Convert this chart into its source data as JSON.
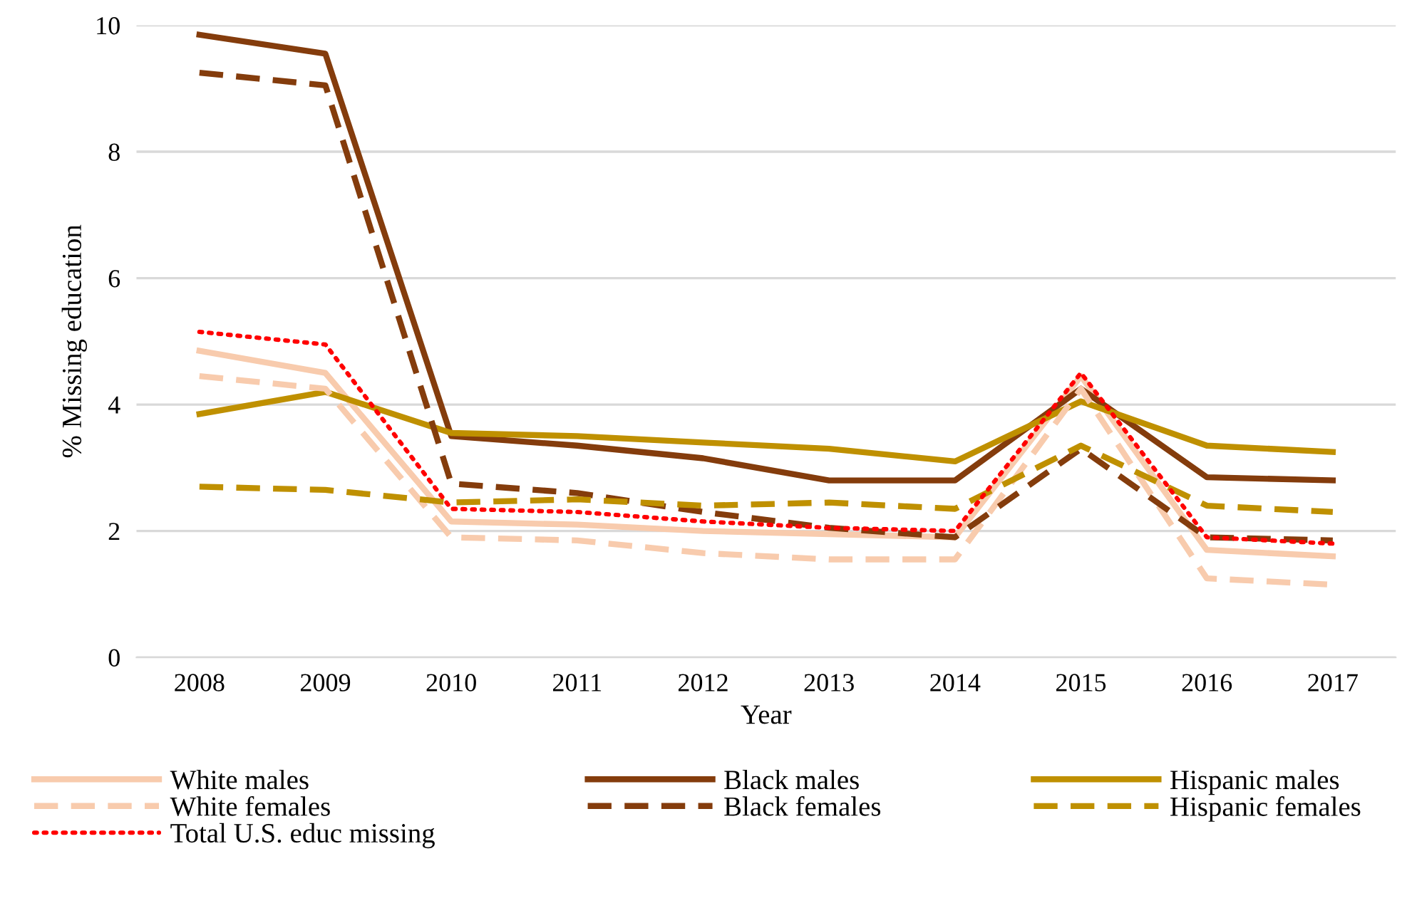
{
  "chart_data": {
    "type": "line",
    "xlabel": "Year",
    "ylabel": "% Missing education",
    "categories": [
      "2008",
      "2009",
      "2010",
      "2011",
      "2012",
      "2013",
      "2014",
      "2015",
      "2016",
      "2017"
    ],
    "ylim": [
      0,
      10
    ],
    "yticks": [
      0,
      2,
      4,
      6,
      8,
      10
    ],
    "grid": "y",
    "legend": "bottom",
    "series": [
      {
        "name": "White males",
        "color": "#f8cbad",
        "line_style": "solid",
        "values": [
          4.85,
          4.5,
          2.15,
          2.1,
          2.0,
          1.95,
          1.9,
          4.45,
          1.7,
          1.6
        ]
      },
      {
        "name": "Black males",
        "color": "#843c0c",
        "line_style": "solid",
        "values": [
          9.85,
          9.55,
          3.5,
          3.35,
          3.15,
          2.8,
          2.8,
          4.25,
          2.85,
          2.8
        ]
      },
      {
        "name": "Hispanic males",
        "color": "#bf9000",
        "line_style": "solid",
        "values": [
          3.85,
          4.2,
          3.55,
          3.5,
          3.4,
          3.3,
          3.1,
          4.05,
          3.35,
          3.25
        ]
      },
      {
        "name": "White females",
        "color": "#f8cbad",
        "line_style": "dashed",
        "values": [
          4.45,
          4.25,
          1.9,
          1.85,
          1.65,
          1.55,
          1.55,
          4.25,
          1.25,
          1.15
        ]
      },
      {
        "name": "Black females",
        "color": "#843c0c",
        "line_style": "dashed",
        "values": [
          9.25,
          9.05,
          2.75,
          2.6,
          2.3,
          2.05,
          1.9,
          3.3,
          1.9,
          1.85
        ]
      },
      {
        "name": "Hispanic females",
        "color": "#bf9000",
        "line_style": "dashed",
        "values": [
          2.7,
          2.65,
          2.45,
          2.5,
          2.4,
          2.45,
          2.35,
          3.35,
          2.4,
          2.3
        ]
      },
      {
        "name": "Total U.S. educ missing",
        "color": "#ff0000",
        "line_style": "dotted",
        "values": [
          5.15,
          4.95,
          2.35,
          2.3,
          2.15,
          2.05,
          2.0,
          4.5,
          1.9,
          1.8
        ]
      }
    ]
  }
}
